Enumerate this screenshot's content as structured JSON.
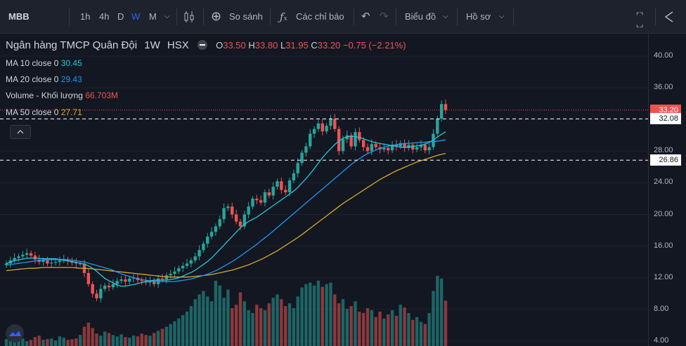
{
  "toolbar": {
    "symbol": "MBB",
    "intervals": [
      "1h",
      "4h",
      "D",
      "W",
      "M"
    ],
    "active_interval": "W",
    "compare_label": "So sánh",
    "indicators_label": "Các chỉ báo",
    "chart_label": "Biểu đồ",
    "profile_label": "Hồ sơ"
  },
  "legend": {
    "title": "Ngân hàng TMCP Quân Đội",
    "interval": "1W",
    "exchange": "HSX",
    "open_label": "O",
    "open": "33.50",
    "high_label": "H",
    "high": "33.80",
    "low_label": "L",
    "low": "31.95",
    "close_label": "C",
    "close": "33.20",
    "change": "−0.75 (−2.21%)",
    "ma10_label": "MA 10 close 0",
    "ma10_value": "30.45",
    "ma20_label": "MA 20 close 0",
    "ma20_value": "29.43",
    "volume_label": "Volume - Khối lượng",
    "volume_value": "66.703M",
    "ma50_label": "MA 50 close 0",
    "ma50_value": "27.71"
  },
  "colors": {
    "up": "#26a69a",
    "down": "#ef5350",
    "ma10": "#26c6da",
    "ma20": "#2196f3",
    "ma50": "#d4a82a",
    "bg": "#131722",
    "accent": "#2962ff"
  },
  "price_axis": {
    "ticks": [
      "40.00",
      "36.00",
      "32.00",
      "28.00",
      "24.00",
      "20.00",
      "16.00",
      "12.00",
      "8.00",
      "4.00"
    ],
    "current_price": "33.20",
    "hline_1": "32.08",
    "hline_2": "26.86"
  },
  "chart_data": {
    "type": "candlestick",
    "closes": [
      13.8,
      14.2,
      14.5,
      14.7,
      14.9,
      15.1,
      14.8,
      14.3,
      14.0,
      14.2,
      13.8,
      13.9,
      14.0,
      14.2,
      14.3,
      14.1,
      13.9,
      13.8,
      13.8,
      12.6,
      11.2,
      10.0,
      9.4,
      10.6,
      11.0,
      10.8,
      11.2,
      11.6,
      11.8,
      11.5,
      11.9,
      12.0,
      11.7,
      11.6,
      11.4,
      11.6,
      11.2,
      11.9,
      11.8,
      12.3,
      12.5,
      12.8,
      13.2,
      13.5,
      13.8,
      14.2,
      14.7,
      15.5,
      16.3,
      17.2,
      17.8,
      18.5,
      19.4,
      20.8,
      21.0,
      20.0,
      19.1,
      18.5,
      20.0,
      21.0,
      22.0,
      21.8,
      21.5,
      22.8,
      22.4,
      23.5,
      24.2,
      23.1,
      22.8,
      24.3,
      25.2,
      26.5,
      27.8,
      28.6,
      30.2,
      30.8,
      31.5,
      30.5,
      31.2,
      32.1,
      30.8,
      28.0,
      29.5,
      30.0,
      28.6,
      30.4,
      29.4,
      28.5,
      28.0,
      28.9,
      28.5,
      28.2,
      28.4,
      28.1,
      28.8,
      28.6,
      29.0,
      28.4,
      28.8,
      28.2,
      28.5,
      28.8,
      28.1,
      28.5,
      30.2,
      32.1,
      33.95,
      33.2
    ],
    "ma10": [
      13.8,
      14.0,
      14.2,
      14.3,
      14.4,
      14.5,
      14.5,
      14.5,
      14.4,
      14.4,
      14.4,
      14.4,
      14.3,
      14.2,
      14.1,
      14.0,
      13.9,
      13.8,
      13.6,
      13.3,
      12.9,
      12.4,
      11.9,
      11.6,
      11.3,
      11.0,
      10.9,
      11.0,
      11.1,
      11.2,
      11.4,
      11.5,
      11.6,
      11.7,
      11.7,
      11.7,
      11.7,
      11.8,
      11.9,
      12.1,
      12.4,
      12.6,
      12.9,
      13.3,
      13.7,
      14.1,
      14.6,
      15.2,
      15.8,
      16.4,
      17.0,
      17.6,
      18.2,
      18.7,
      19.1,
      19.4,
      19.7,
      20.1,
      20.5,
      20.9,
      21.3,
      21.7,
      22.1,
      22.5,
      22.9,
      23.4,
      24.0,
      24.6,
      25.3,
      26.0,
      26.8,
      27.5,
      28.1,
      28.7,
      29.2,
      29.6,
      29.8,
      29.9,
      29.8,
      29.7,
      29.5,
      29.3,
      29.1,
      29.0,
      28.9,
      28.8,
      28.7,
      28.6,
      28.5,
      28.5,
      28.5,
      28.6,
      28.7,
      28.8,
      29.0,
      29.3,
      29.7,
      30.1,
      30.45
    ],
    "ma20": [
      13.6,
      13.7,
      13.8,
      13.9,
      14.0,
      14.1,
      14.2,
      14.3,
      14.3,
      14.3,
      14.3,
      14.3,
      14.2,
      14.1,
      14.0,
      13.8,
      13.6,
      13.4,
      13.2,
      13.0,
      12.7,
      12.4,
      12.2,
      12.0,
      11.8,
      11.7,
      11.6,
      11.5,
      11.5,
      11.5,
      11.5,
      11.6,
      11.7,
      11.8,
      12.0,
      12.2,
      12.4,
      12.7,
      13.0,
      13.4,
      13.8,
      14.2,
      14.7,
      15.2,
      15.7,
      16.2,
      16.8,
      17.3,
      17.9,
      18.5,
      19.1,
      19.7,
      20.3,
      20.9,
      21.5,
      22.1,
      22.7,
      23.3,
      23.9,
      24.5,
      25.1,
      25.7,
      26.3,
      26.8,
      27.3,
      27.7,
      28.0,
      28.3,
      28.5,
      28.7,
      28.8,
      28.9,
      29.0,
      29.0,
      29.1,
      29.1,
      29.2,
      29.2,
      29.3,
      29.43
    ],
    "ma50": [
      12.9,
      13.0,
      13.1,
      13.2,
      13.2,
      13.3,
      13.3,
      13.3,
      13.3,
      13.3,
      13.2,
      13.2,
      13.1,
      13.0,
      12.9,
      12.8,
      12.7,
      12.6,
      12.5,
      12.4,
      12.3,
      12.2,
      12.1,
      12.1,
      12.1,
      12.1,
      12.2,
      12.3,
      12.4,
      12.6,
      12.8,
      13.0,
      13.3,
      13.6,
      14.0,
      14.4,
      14.9,
      15.4,
      16.0,
      16.6,
      17.2,
      17.9,
      18.6,
      19.3,
      20.0,
      20.7,
      21.4,
      22.0,
      22.6,
      23.2,
      23.8,
      24.4,
      24.9,
      25.4,
      25.8,
      26.2,
      26.6,
      26.9,
      27.2,
      27.5,
      27.71
    ],
    "volume": [
      1.0,
      0.8,
      1.2,
      0.9,
      1.1,
      0.7,
      0.9,
      1.3,
      1.5,
      0.9,
      1.0,
      1.1,
      0.8,
      1.4,
      1.2,
      0.9,
      1.0,
      1.1,
      1.6,
      2.8,
      3.4,
      2.6,
      1.8,
      1.5,
      2.1,
      1.9,
      1.6,
      1.4,
      1.7,
      1.3,
      1.2,
      1.5,
      1.4,
      1.8,
      1.6,
      1.5,
      1.9,
      2.2,
      2.5,
      2.8,
      3.2,
      3.6,
      4.0,
      4.5,
      5.0,
      5.8,
      6.8,
      7.5,
      8.0,
      7.2,
      6.5,
      9.5,
      8.8,
      7.0,
      8.2,
      5.5,
      6.0,
      7.8,
      6.5,
      5.2,
      4.8,
      6.0,
      5.5,
      5.2,
      6.2,
      7.0,
      7.5,
      6.8,
      5.8,
      6.2,
      5.5,
      7.2,
      8.5,
      9.0,
      9.2,
      8.8,
      9.5,
      8.6,
      9.0,
      9.2,
      7.5,
      6.2,
      6.8,
      5.4,
      5.8,
      6.5,
      5.0,
      4.8,
      5.5,
      5.2,
      4.2,
      5.0,
      4.0,
      4.6,
      5.2,
      4.4,
      6.0,
      5.6,
      4.8,
      3.8,
      4.2,
      3.5,
      3.2,
      4.8,
      8.0,
      10.2,
      9.8,
      6.6
    ],
    "ylim": [
      4,
      42
    ]
  }
}
